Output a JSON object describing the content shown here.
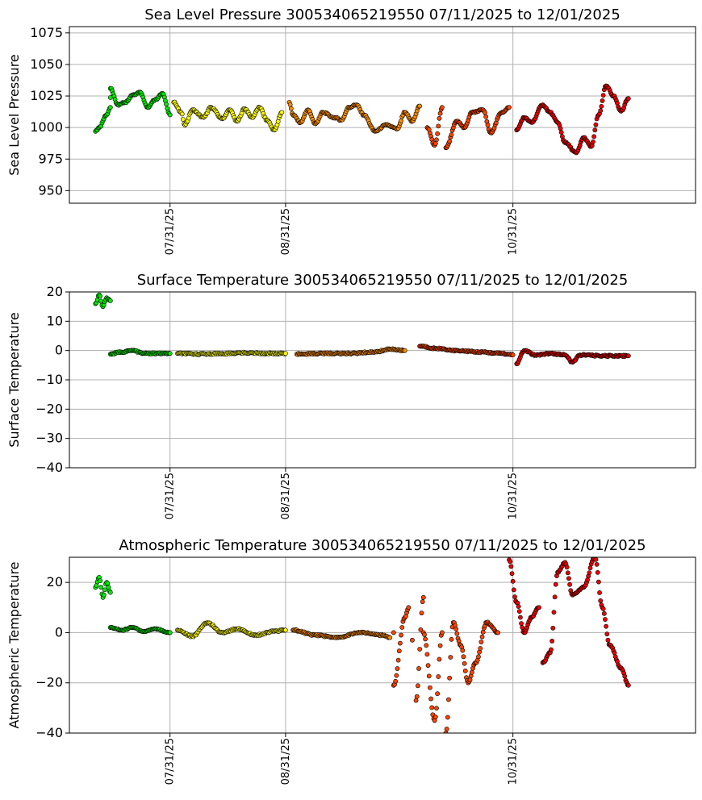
{
  "colors": {
    "green": "#00ee00",
    "yellow": "#ffff00",
    "orange": "#ff8c00",
    "red_orange": "#ff4500",
    "red": "#ee0000",
    "outline": "#000000"
  },
  "chart_data": [
    {
      "type": "scatter",
      "title": "Sea Level Pressure 300534065219550  07/11/2025 to 12/01/2025",
      "ylabel": "Sea Level Pressure",
      "xlabel": "",
      "ylim": [
        940,
        1080
      ],
      "yticks": [
        950,
        975,
        1000,
        1025,
        1050,
        1075
      ],
      "xlim": [
        "2025-07-04",
        "2025-12-19"
      ],
      "xticks": [
        "2025-07-31",
        "2025-08-31",
        "2025-10-31"
      ],
      "xtick_labels": [
        "07/31/25",
        "08/31/25",
        "10/31/25"
      ],
      "grid": true,
      "series": [
        {
          "color": "green",
          "points": [
            [
              "2025-07-11",
              997
            ],
            [
              "2025-07-12",
              1000
            ],
            [
              "2025-07-14",
              1010
            ],
            [
              "2025-07-15",
              1016
            ],
            [
              "2025-07-15",
              1031
            ],
            [
              "2025-07-17",
              1018
            ],
            [
              "2025-07-19",
              1020
            ],
            [
              "2025-07-21",
              1026
            ],
            [
              "2025-07-23",
              1028
            ],
            [
              "2025-07-25",
              1016
            ],
            [
              "2025-07-27",
              1022
            ],
            [
              "2025-07-29",
              1027
            ],
            [
              "2025-07-31",
              1010
            ]
          ]
        },
        {
          "color": "yellow",
          "points": [
            [
              "2025-08-01",
              1020
            ],
            [
              "2025-08-03",
              1012
            ],
            [
              "2025-08-04",
              1002
            ],
            [
              "2025-08-06",
              1014
            ],
            [
              "2025-08-09",
              1008
            ],
            [
              "2025-08-11",
              1016
            ],
            [
              "2025-08-14",
              1007
            ],
            [
              "2025-08-16",
              1014
            ],
            [
              "2025-08-18",
              1005
            ],
            [
              "2025-08-20",
              1015
            ],
            [
              "2025-08-22",
              1008
            ],
            [
              "2025-08-24",
              1016
            ],
            [
              "2025-08-26",
              1006
            ],
            [
              "2025-08-28",
              998
            ],
            [
              "2025-08-30",
              1012
            ]
          ]
        },
        {
          "color": "orange",
          "points": [
            [
              "2025-09-01",
              1020
            ],
            [
              "2025-09-02",
              1010
            ],
            [
              "2025-09-04",
              1004
            ],
            [
              "2025-09-06",
              1014
            ],
            [
              "2025-09-08",
              1003
            ],
            [
              "2025-09-10",
              1012
            ],
            [
              "2025-09-13",
              1008
            ],
            [
              "2025-09-15",
              1006
            ],
            [
              "2025-09-17",
              1016
            ],
            [
              "2025-09-19",
              1018
            ],
            [
              "2025-09-21",
              1010
            ],
            [
              "2025-09-24",
              997
            ],
            [
              "2025-09-27",
              1002
            ],
            [
              "2025-09-30",
              999
            ],
            [
              "2025-10-02",
              1012
            ],
            [
              "2025-10-04",
              1005
            ],
            [
              "2025-10-06",
              1017
            ]
          ]
        },
        {
          "color": "red_orange",
          "points": [
            [
              "2025-10-08",
              1000
            ],
            [
              "2025-10-10",
              986
            ],
            [
              "2025-10-12",
              1016
            ],
            [
              "2025-10-13",
              984
            ],
            [
              "2025-10-16",
              1005
            ],
            [
              "2025-10-18",
              1000
            ],
            [
              "2025-10-20",
              1012
            ],
            [
              "2025-10-23",
              1014
            ],
            [
              "2025-10-25",
              996
            ],
            [
              "2025-10-28",
              1012
            ],
            [
              "2025-10-30",
              1016
            ]
          ]
        },
        {
          "color": "red",
          "points": [
            [
              "2025-11-01",
              998
            ],
            [
              "2025-11-03",
              1008
            ],
            [
              "2025-11-05",
              1004
            ],
            [
              "2025-11-08",
              1018
            ],
            [
              "2025-11-10",
              1012
            ],
            [
              "2025-11-12",
              1004
            ],
            [
              "2025-11-14",
              988
            ],
            [
              "2025-11-17",
              980
            ],
            [
              "2025-11-19",
              992
            ],
            [
              "2025-11-21",
              985
            ],
            [
              "2025-11-23",
              1010
            ],
            [
              "2025-11-25",
              1033
            ],
            [
              "2025-11-27",
              1025
            ],
            [
              "2025-11-29",
              1013
            ],
            [
              "2025-12-01",
              1023
            ]
          ]
        }
      ]
    },
    {
      "type": "scatter",
      "title": "Surface Temperature 300534065219550  07/11/2025 to 12/01/2025",
      "ylabel": "Surface Temperature",
      "xlabel": "",
      "ylim": [
        -40,
        20
      ],
      "yticks": [
        -40,
        -30,
        -20,
        -10,
        0,
        10,
        20
      ],
      "xlim": [
        "2025-07-04",
        "2025-12-19"
      ],
      "xticks": [
        "2025-07-31",
        "2025-08-31",
        "2025-10-31"
      ],
      "xtick_labels": [
        "07/31/25",
        "08/31/25",
        "10/31/25"
      ],
      "grid": true,
      "series": [
        {
          "color": "green",
          "points": [
            [
              "2025-07-11",
              16
            ],
            [
              "2025-07-12",
              19
            ],
            [
              "2025-07-13",
              15
            ],
            [
              "2025-07-14",
              18
            ],
            [
              "2025-07-15",
              17
            ],
            [
              "2025-07-15",
              -1.2
            ],
            [
              "2025-07-18",
              -0.5
            ],
            [
              "2025-07-21",
              0
            ],
            [
              "2025-07-24",
              -1
            ],
            [
              "2025-07-28",
              -1
            ],
            [
              "2025-07-31",
              -1
            ]
          ]
        },
        {
          "color": "yellow",
          "points": [
            [
              "2025-08-02",
              -1
            ],
            [
              "2025-08-08",
              -1.2
            ],
            [
              "2025-08-14",
              -1
            ],
            [
              "2025-08-20",
              -0.8
            ],
            [
              "2025-08-26",
              -1
            ],
            [
              "2025-08-31",
              -1
            ]
          ]
        },
        {
          "color": "orange",
          "points": [
            [
              "2025-09-03",
              -1.2
            ],
            [
              "2025-09-10",
              -1
            ],
            [
              "2025-09-17",
              -1
            ],
            [
              "2025-09-24",
              -0.5
            ],
            [
              "2025-09-28",
              0.5
            ],
            [
              "2025-10-02",
              0
            ]
          ]
        },
        {
          "color": "red_orange",
          "points": [
            [
              "2025-10-06",
              1.5
            ],
            [
              "2025-10-10",
              0.8
            ],
            [
              "2025-10-16",
              0
            ],
            [
              "2025-10-22",
              -0.5
            ],
            [
              "2025-10-28",
              -1
            ],
            [
              "2025-10-31",
              -1.5
            ]
          ]
        },
        {
          "color": "red",
          "points": [
            [
              "2025-11-01",
              -4.5
            ],
            [
              "2025-11-03",
              0
            ],
            [
              "2025-11-06",
              -1.5
            ],
            [
              "2025-11-10",
              -1
            ],
            [
              "2025-11-14",
              -1.5
            ],
            [
              "2025-11-16",
              -4
            ],
            [
              "2025-11-18",
              -1.5
            ],
            [
              "2025-11-24",
              -1.8
            ],
            [
              "2025-12-01",
              -1.8
            ]
          ]
        }
      ]
    },
    {
      "type": "scatter",
      "title": "Atmospheric Temperature 300534065219550  07/11/2025 to 12/01/2025",
      "ylabel": "Atmospheric Temperature",
      "xlabel": "",
      "ylim": [
        -40,
        30
      ],
      "yticks": [
        -40,
        -20,
        0,
        20
      ],
      "xlim": [
        "2025-07-04",
        "2025-12-19"
      ],
      "xticks": [
        "2025-07-31",
        "2025-08-31",
        "2025-10-31"
      ],
      "xtick_labels": [
        "07/31/25",
        "08/31/25",
        "10/31/25"
      ],
      "grid": true,
      "series": [
        {
          "color": "green",
          "points": [
            [
              "2025-07-11",
              18
            ],
            [
              "2025-07-12",
              22
            ],
            [
              "2025-07-13",
              14
            ],
            [
              "2025-07-14",
              20
            ],
            [
              "2025-07-15",
              16
            ],
            [
              "2025-07-15",
              2
            ],
            [
              "2025-07-18",
              1
            ],
            [
              "2025-07-21",
              2
            ],
            [
              "2025-07-24",
              0.5
            ],
            [
              "2025-07-27",
              1.5
            ],
            [
              "2025-07-31",
              0
            ]
          ]
        },
        {
          "color": "yellow",
          "points": [
            [
              "2025-08-02",
              1
            ],
            [
              "2025-08-06",
              -1.5
            ],
            [
              "2025-08-10",
              4
            ],
            [
              "2025-08-14",
              0
            ],
            [
              "2025-08-18",
              1.5
            ],
            [
              "2025-08-23",
              -1
            ],
            [
              "2025-08-28",
              0.5
            ],
            [
              "2025-08-31",
              1
            ]
          ]
        },
        {
          "color": "orange",
          "points": [
            [
              "2025-09-02",
              1
            ],
            [
              "2025-09-08",
              -1
            ],
            [
              "2025-09-14",
              -2
            ],
            [
              "2025-09-20",
              0
            ],
            [
              "2025-09-26",
              -1
            ],
            [
              "2025-09-28",
              -2
            ]
          ]
        },
        {
          "color": "red_orange",
          "points": [
            [
              "2025-09-29",
              0
            ],
            [
              "2025-09-29",
              -21
            ],
            [
              "2025-10-02",
              6
            ],
            [
              "2025-10-03",
              10
            ],
            [
              "2025-10-04",
              -3
            ],
            [
              "2025-10-05",
              -27
            ],
            [
              "2025-10-07",
              14
            ],
            [
              "2025-10-07",
              0
            ],
            [
              "2025-10-10",
              -35
            ],
            [
              "2025-10-12",
              0
            ],
            [
              "2025-10-13",
              -40
            ],
            [
              "2025-10-15",
              4
            ],
            [
              "2025-10-17",
              -5
            ],
            [
              "2025-10-19",
              -20
            ],
            [
              "2025-10-21",
              -12
            ],
            [
              "2025-10-24",
              4
            ],
            [
              "2025-10-27",
              0
            ]
          ]
        },
        {
          "color": "red",
          "points": [
            [
              "2025-10-30",
              29
            ],
            [
              "2025-11-01",
              12
            ],
            [
              "2025-11-03",
              0
            ],
            [
              "2025-11-05",
              6
            ],
            [
              "2025-11-07",
              10
            ],
            [
              "2025-11-08",
              -12
            ],
            [
              "2025-11-10",
              -8
            ],
            [
              "2025-11-12",
              24
            ],
            [
              "2025-11-14",
              28
            ],
            [
              "2025-11-16",
              15
            ],
            [
              "2025-11-19",
              18
            ],
            [
              "2025-11-22",
              30
            ],
            [
              "2025-11-24",
              10
            ],
            [
              "2025-11-26",
              -5
            ],
            [
              "2025-11-29",
              -14
            ],
            [
              "2025-12-01",
              -21
            ]
          ]
        }
      ]
    }
  ]
}
